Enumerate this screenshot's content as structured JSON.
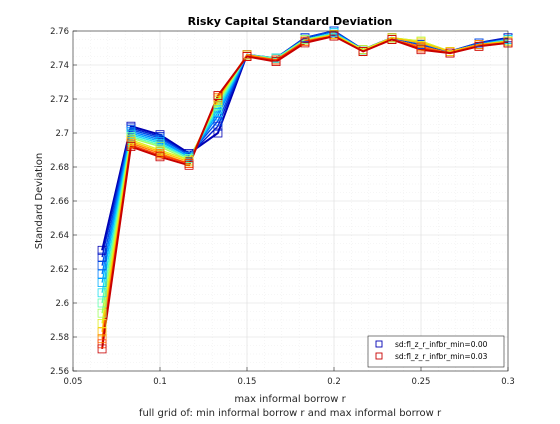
{
  "chart_data": {
    "type": "line",
    "title": "Risky Capital Standard Deviation",
    "xlabel": "max informal borrow r",
    "ylabel": "Standard Deviation",
    "footer": "full grid of: min informal borrow r and max informal borrow r",
    "xlim": [
      0.05,
      0.3
    ],
    "ylim": [
      2.56,
      2.76
    ],
    "xticks": [
      0.05,
      0.1,
      0.15,
      0.2,
      0.25,
      0.3
    ],
    "xtick_labels": [
      "0.05",
      "0.1",
      "0.15",
      "0.2",
      "0.25",
      "0.3"
    ],
    "yticks": [
      2.56,
      2.58,
      2.6,
      2.62,
      2.64,
      2.66,
      2.68,
      2.7,
      2.72,
      2.74,
      2.76
    ],
    "ytick_labels": [
      "2.56",
      "2.58",
      "2.6",
      "2.62",
      "2.64",
      "2.66",
      "2.68",
      "2.7",
      "2.72",
      "2.74",
      "2.76"
    ],
    "grid": true,
    "legend_position": "bottom-right",
    "x": [
      0.0667,
      0.0833,
      0.1,
      0.1167,
      0.1333,
      0.15,
      0.1667,
      0.1833,
      0.2,
      0.2167,
      0.2333,
      0.25,
      0.2667,
      0.2833,
      0.3
    ],
    "series": [
      {
        "name": "sd:fl_z_r_infbr_min=0.00",
        "color": "#0000b4",
        "values": [
          2.631,
          2.704,
          2.699,
          2.688,
          2.7,
          2.746,
          2.744,
          2.756,
          2.76,
          2.749,
          2.756,
          2.752,
          2.748,
          2.753,
          2.756
        ]
      },
      {
        "color": "#0020d0",
        "values": [
          2.627,
          2.703,
          2.698,
          2.687,
          2.704,
          2.746,
          2.744,
          2.756,
          2.76,
          2.749,
          2.756,
          2.752,
          2.748,
          2.753,
          2.756
        ]
      },
      {
        "color": "#0050e8",
        "values": [
          2.622,
          2.702,
          2.697,
          2.687,
          2.707,
          2.746,
          2.744,
          2.756,
          2.76,
          2.749,
          2.756,
          2.752,
          2.748,
          2.753,
          2.755
        ]
      },
      {
        "color": "#0080ff",
        "values": [
          2.617,
          2.701,
          2.696,
          2.686,
          2.71,
          2.746,
          2.744,
          2.755,
          2.759,
          2.749,
          2.756,
          2.753,
          2.748,
          2.752,
          2.755
        ]
      },
      {
        "color": "#00b0ff",
        "values": [
          2.612,
          2.7,
          2.695,
          2.686,
          2.712,
          2.746,
          2.744,
          2.755,
          2.759,
          2.749,
          2.756,
          2.753,
          2.748,
          2.752,
          2.755
        ]
      },
      {
        "color": "#20e0f0",
        "values": [
          2.606,
          2.699,
          2.694,
          2.685,
          2.714,
          2.746,
          2.744,
          2.755,
          2.759,
          2.749,
          2.756,
          2.753,
          2.748,
          2.752,
          2.755
        ]
      },
      {
        "color": "#60ffb0",
        "values": [
          2.6,
          2.698,
          2.693,
          2.685,
          2.716,
          2.746,
          2.744,
          2.755,
          2.758,
          2.749,
          2.756,
          2.754,
          2.748,
          2.752,
          2.754
        ]
      },
      {
        "color": "#a0ff60",
        "values": [
          2.594,
          2.697,
          2.692,
          2.684,
          2.718,
          2.746,
          2.743,
          2.755,
          2.758,
          2.749,
          2.756,
          2.754,
          2.748,
          2.752,
          2.754
        ]
      },
      {
        "color": "#e0f020",
        "values": [
          2.588,
          2.696,
          2.69,
          2.684,
          2.719,
          2.746,
          2.743,
          2.754,
          2.758,
          2.749,
          2.756,
          2.754,
          2.748,
          2.752,
          2.754
        ]
      },
      {
        "color": "#ffc000",
        "values": [
          2.583,
          2.695,
          2.689,
          2.683,
          2.72,
          2.746,
          2.743,
          2.754,
          2.758,
          2.748,
          2.756,
          2.753,
          2.748,
          2.752,
          2.754
        ]
      },
      {
        "color": "#ff8000",
        "values": [
          2.579,
          2.694,
          2.688,
          2.682,
          2.721,
          2.746,
          2.743,
          2.754,
          2.757,
          2.748,
          2.755,
          2.751,
          2.747,
          2.752,
          2.753
        ]
      },
      {
        "color": "#ff4000",
        "values": [
          2.576,
          2.693,
          2.687,
          2.682,
          2.722,
          2.745,
          2.743,
          2.754,
          2.757,
          2.748,
          2.755,
          2.75,
          2.747,
          2.751,
          2.753
        ]
      },
      {
        "name": "sd:fl_z_r_infbr_min=0.03",
        "color": "#c80000",
        "values": [
          2.573,
          2.692,
          2.686,
          2.681,
          2.722,
          2.745,
          2.742,
          2.753,
          2.757,
          2.748,
          2.755,
          2.749,
          2.747,
          2.751,
          2.753
        ]
      }
    ]
  }
}
